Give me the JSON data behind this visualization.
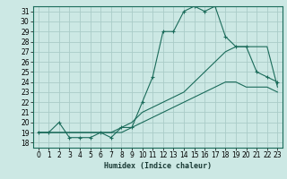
{
  "xlabel": "Humidex (Indice chaleur)",
  "bg_color": "#cce8e4",
  "grid_color": "#aaccc8",
  "line_color": "#1a6b5a",
  "xlim": [
    -0.5,
    23.5
  ],
  "ylim": [
    17.5,
    31.5
  ],
  "xticks": [
    0,
    1,
    2,
    3,
    4,
    5,
    6,
    7,
    8,
    9,
    10,
    11,
    12,
    13,
    14,
    15,
    16,
    17,
    18,
    19,
    20,
    21,
    22,
    23
  ],
  "yticks": [
    18,
    19,
    20,
    21,
    22,
    23,
    24,
    25,
    26,
    27,
    28,
    29,
    30,
    31
  ],
  "main_x": [
    0,
    1,
    2,
    3,
    4,
    5,
    6,
    7,
    8,
    9,
    10,
    11,
    12,
    13,
    14,
    15,
    16,
    17,
    18,
    19,
    20,
    21,
    22,
    23
  ],
  "main_y": [
    19,
    19,
    20,
    18.5,
    18.5,
    18.5,
    19,
    18.5,
    19.5,
    19.5,
    22,
    24.5,
    29,
    29,
    31,
    31.5,
    31,
    31.5,
    28.5,
    27.5,
    27.5,
    25,
    24.5,
    24
  ],
  "line2_x": [
    0,
    1,
    2,
    3,
    4,
    5,
    6,
    7,
    8,
    9,
    10,
    11,
    12,
    13,
    14,
    15,
    16,
    17,
    18,
    19,
    20,
    21,
    22,
    23
  ],
  "line2_y": [
    19,
    19,
    19,
    19,
    19,
    19,
    19,
    19,
    19.5,
    20,
    21,
    21.5,
    22,
    22.5,
    23,
    24,
    25,
    26,
    27,
    27.5,
    27.5,
    27.5,
    27.5,
    23.5
  ],
  "line3_x": [
    0,
    1,
    2,
    3,
    4,
    5,
    6,
    7,
    8,
    9,
    10,
    11,
    12,
    13,
    14,
    15,
    16,
    17,
    18,
    19,
    20,
    21,
    22,
    23
  ],
  "line3_y": [
    19,
    19,
    19,
    19,
    19,
    19,
    19,
    19,
    19,
    19.5,
    20,
    20.5,
    21,
    21.5,
    22,
    22.5,
    23,
    23.5,
    24,
    24,
    23.5,
    23.5,
    23.5,
    23
  ]
}
